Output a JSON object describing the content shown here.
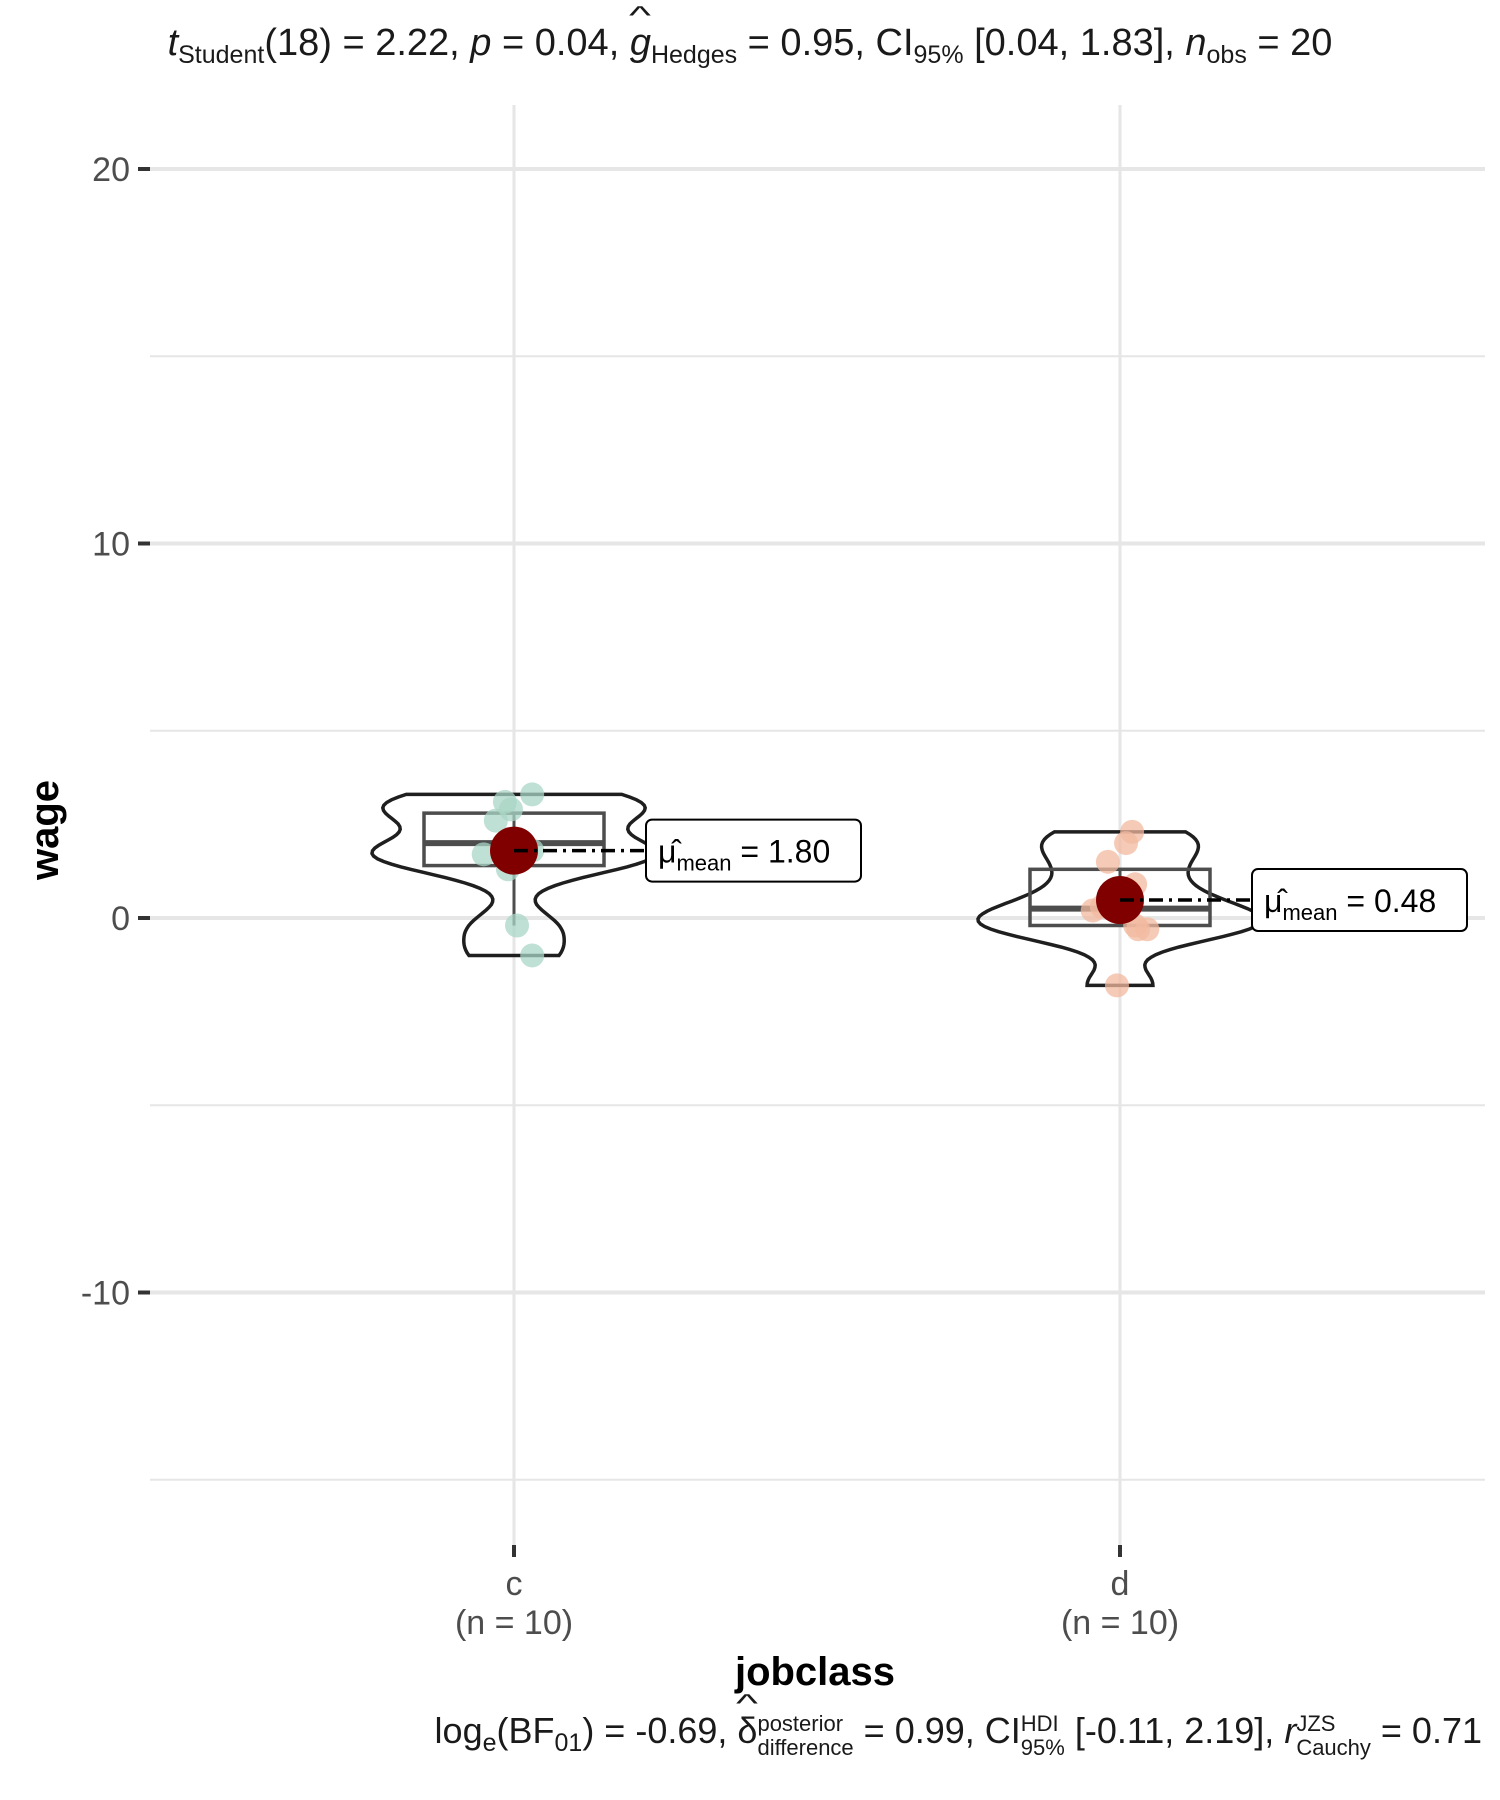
{
  "chart_data": {
    "type": "violin",
    "title": {
      "t_label": "t",
      "t_sub": "Student",
      "df": "(18) = 2.22,",
      "p_label": "p",
      "p_val": " = 0.04,",
      "g_label": "g",
      "g_sub": "Hedges",
      "g_val": " = 0.95, CI",
      "ci_sub": "95%",
      "ci_val": " [0.04, 1.83],",
      "n_label": "n",
      "n_sub": "obs",
      "n_val": " = 20"
    },
    "caption": {
      "log_label": "log",
      "log_sub": "e",
      "bf_open": "(BF",
      "bf_sub": "01",
      "bf_val": ") = -0.69,",
      "delta": "δ",
      "delta_sup": "posterior",
      "delta_sub": "difference",
      "delta_val": " = 0.99, CI",
      "hdi_sup": "HDI",
      "hdi_sub": "95%",
      "hdi_val": " [-0.11, 2.19],",
      "r_label": "r",
      "r_sup": "JZS",
      "r_sub": "Cauchy",
      "r_val": " = 0.71"
    },
    "xlabel": "jobclass",
    "ylabel": "wage",
    "ylim": [
      -16.5,
      22
    ],
    "y_ticks": [
      20,
      10,
      0,
      -10
    ],
    "grid": true,
    "groups": [
      {
        "category": "c",
        "n_label": "(n = 10)",
        "color": "#a9d5c5",
        "mean": 1.8,
        "mean_label": "mean",
        "mean_value": " = 1.80",
        "median": 2.0,
        "q1": 1.4,
        "q3": 2.8,
        "whisker_low": -0.2,
        "whisker_high": 2.8,
        "points": [
          3.3,
          3.1,
          2.9,
          2.6,
          1.8,
          1.7,
          1.3,
          1.8,
          -0.2,
          -1.0
        ],
        "jitter": [
          0.06,
          -0.03,
          -0.01,
          -0.06,
          0.06,
          -0.1,
          -0.02,
          0.0,
          0.01,
          0.06
        ]
      },
      {
        "category": "d",
        "n_label": "(n = 10)",
        "color": "#f2b9a0",
        "mean": 0.48,
        "mean_label": "mean",
        "mean_value": " = 0.48",
        "median": 0.25,
        "q1": -0.2,
        "q3": 1.3,
        "whisker_low": -0.2,
        "whisker_high": 1.3,
        "points": [
          2.3,
          2.0,
          1.5,
          0.9,
          0.2,
          0.3,
          -0.2,
          -0.3,
          -0.3,
          -1.8
        ],
        "jitter": [
          0.04,
          0.02,
          -0.04,
          0.05,
          -0.09,
          -0.06,
          0.05,
          0.09,
          0.06,
          -0.01
        ]
      }
    ]
  }
}
